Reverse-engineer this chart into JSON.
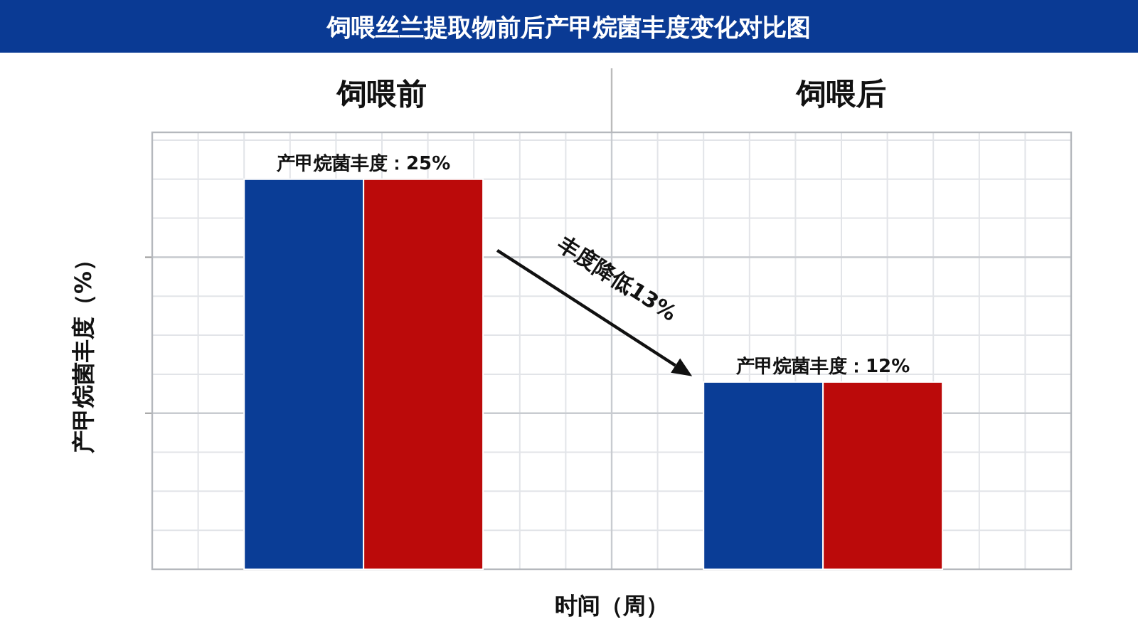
{
  "chart_data": {
    "type": "bar",
    "title": "饲喂丝兰提取物前后产甲烷菌丰度变化对比图",
    "xlabel": "时间（周）",
    "ylabel": "产甲烷菌丰度（%）",
    "categories": [
      "饲喂前",
      "饲喂后"
    ],
    "series": [
      {
        "color": "#0a3d96",
        "values": [
          25,
          12
        ],
        "value_labels": [
          "产甲烷菌丰度：25%",
          "产甲烷菌丰度：12%"
        ]
      },
      {
        "color": "#bb0a0a",
        "values": [
          25,
          12
        ]
      }
    ],
    "ylim": [
      0,
      28
    ],
    "yticks": [
      {
        "value": 10,
        "label": null
      },
      {
        "value": 20,
        "label": null
      }
    ],
    "grid": true,
    "annotations": [
      "丰度降低13%"
    ]
  }
}
